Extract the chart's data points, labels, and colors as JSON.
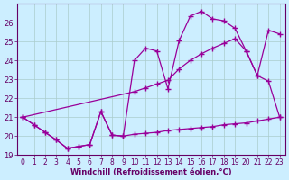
{
  "xlabel": "Windchill (Refroidissement éolien,°C)",
  "bg_color": "#cceeff",
  "line_color": "#990099",
  "grid_color": "#aacccc",
  "axis_color": "#660066",
  "xlim": [
    -0.5,
    23.5
  ],
  "ylim": [
    19,
    27
  ],
  "yticks": [
    19,
    20,
    21,
    22,
    23,
    24,
    25,
    26
  ],
  "xticks": [
    0,
    1,
    2,
    3,
    4,
    5,
    6,
    7,
    8,
    9,
    10,
    11,
    12,
    13,
    14,
    15,
    16,
    17,
    18,
    19,
    20,
    21,
    22,
    23
  ],
  "s1x": [
    0,
    1,
    2,
    3,
    4,
    5,
    6,
    7,
    8,
    9,
    10,
    11,
    12,
    13,
    14,
    15,
    16,
    17,
    18,
    19,
    20,
    21,
    22,
    23
  ],
  "s1y": [
    21.0,
    20.6,
    20.2,
    19.8,
    19.35,
    19.45,
    19.55,
    21.3,
    20.05,
    20.0,
    20.1,
    20.15,
    20.2,
    20.3,
    20.35,
    20.4,
    20.45,
    20.5,
    20.6,
    20.65,
    20.7,
    20.8,
    20.9,
    21.0
  ],
  "s2x": [
    0,
    1,
    2,
    3,
    4,
    5,
    6,
    7,
    8,
    9,
    10,
    11,
    12,
    13,
    14,
    15,
    16,
    17,
    18,
    19,
    20,
    21,
    22,
    23
  ],
  "s2y": [
    21.0,
    20.6,
    20.2,
    19.8,
    19.35,
    19.45,
    19.55,
    21.3,
    20.05,
    20.0,
    24.0,
    24.65,
    24.5,
    22.5,
    25.05,
    26.35,
    26.6,
    26.2,
    26.1,
    25.7,
    24.5,
    23.2,
    22.9,
    21.0
  ],
  "s3x": [
    0,
    10,
    11,
    12,
    13,
    14,
    15,
    16,
    17,
    18,
    19,
    20,
    21,
    22,
    23
  ],
  "s3y": [
    21.0,
    22.35,
    22.55,
    22.75,
    22.95,
    23.55,
    24.0,
    24.35,
    24.65,
    24.9,
    25.15,
    24.5,
    23.2,
    25.6,
    25.4
  ]
}
